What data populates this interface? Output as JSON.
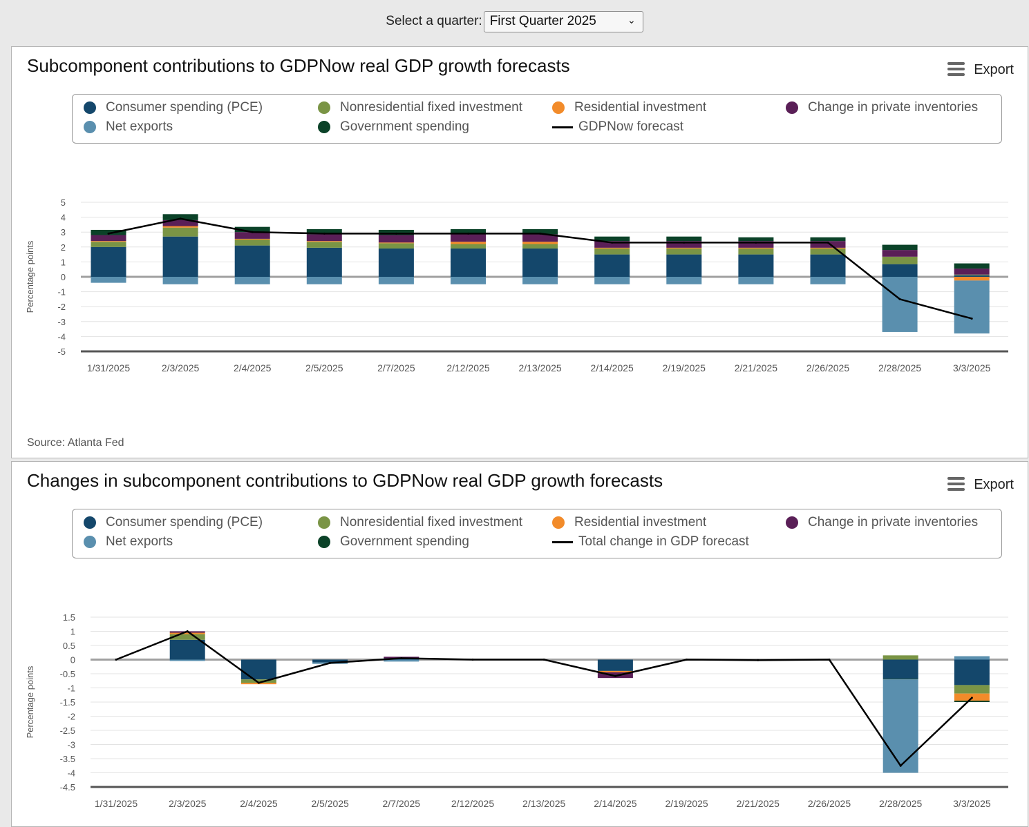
{
  "selector": {
    "label": "Select a quarter:",
    "value": "First Quarter 2025"
  },
  "export_label": "Export",
  "colors": {
    "pce": "#14476b",
    "nonres": "#7a9445",
    "res": "#f28b2a",
    "inv": "#5a1f57",
    "netx": "#5a8fae",
    "gov": "#0b4228",
    "line": "#000000"
  },
  "panels": [
    {
      "title": "Subcomponent contributions to GDPNow real GDP growth forecasts",
      "source": "Source: Atlanta Fed",
      "legend": [
        {
          "key": "pce",
          "label": "Consumer spending (PCE)"
        },
        {
          "key": "nonres",
          "label": "Nonresidential fixed investment"
        },
        {
          "key": "res",
          "label": "Residential investment"
        },
        {
          "key": "inv",
          "label": "Change in private inventories"
        },
        {
          "key": "netx",
          "label": "Net exports"
        },
        {
          "key": "gov",
          "label": "Government spending"
        },
        {
          "key": "line",
          "label": "GDPNow forecast",
          "line": true
        }
      ]
    },
    {
      "title": "Changes in subcomponent contributions to GDPNow real GDP growth forecasts",
      "legend": [
        {
          "key": "pce",
          "label": "Consumer spending (PCE)"
        },
        {
          "key": "nonres",
          "label": "Nonresidential fixed investment"
        },
        {
          "key": "res",
          "label": "Residential investment"
        },
        {
          "key": "inv",
          "label": "Change in private inventories"
        },
        {
          "key": "netx",
          "label": "Net exports"
        },
        {
          "key": "gov",
          "label": "Government spending"
        },
        {
          "key": "line",
          "label": "Total change in GDP forecast",
          "line": true
        }
      ]
    }
  ],
  "chart_data": [
    {
      "type": "bar",
      "stacked": true,
      "title": "Subcomponent contributions to GDPNow real GDP growth forecasts",
      "ylabel": "Percentage points",
      "ylim": [
        -5,
        5
      ],
      "yticks": [
        "5",
        "4",
        "3",
        "2",
        "1",
        "0",
        "-1",
        "-2",
        "-3",
        "-4",
        "-5"
      ],
      "ytick_values": [
        5,
        4,
        3,
        2,
        1,
        0,
        -1,
        -2,
        -3,
        -4,
        -5
      ],
      "categories": [
        "1/31/2025",
        "2/3/2025",
        "2/4/2025",
        "2/5/2025",
        "2/7/2025",
        "2/12/2025",
        "2/13/2025",
        "2/14/2025",
        "2/19/2025",
        "2/21/2025",
        "2/26/2025",
        "2/28/2025",
        "3/3/2025"
      ],
      "series": [
        {
          "key": "pce",
          "name": "Consumer spending (PCE)",
          "values": [
            2.0,
            2.7,
            2.1,
            1.95,
            1.9,
            1.9,
            1.9,
            1.5,
            1.5,
            1.5,
            1.5,
            0.85,
            0.1
          ]
        },
        {
          "key": "nonres",
          "name": "Nonresidential fixed investment",
          "values": [
            0.35,
            0.6,
            0.4,
            0.4,
            0.35,
            0.3,
            0.3,
            0.4,
            0.4,
            0.4,
            0.4,
            0.5,
            0.05
          ]
        },
        {
          "key": "res",
          "name": "Residential investment",
          "values": [
            0.05,
            0.1,
            0.05,
            0.05,
            0.05,
            0.15,
            0.15,
            0.05,
            0.05,
            0.05,
            0.05,
            0.0,
            -0.25
          ]
        },
        {
          "key": "inv",
          "name": "Change in private inventories",
          "values": [
            0.4,
            0.4,
            0.45,
            0.45,
            0.5,
            0.5,
            0.5,
            0.45,
            0.45,
            0.45,
            0.45,
            0.45,
            0.4
          ]
        },
        {
          "key": "gov",
          "name": "Government spending",
          "values": [
            0.35,
            0.4,
            0.35,
            0.35,
            0.35,
            0.35,
            0.35,
            0.3,
            0.3,
            0.25,
            0.25,
            0.35,
            0.35
          ]
        },
        {
          "key": "netx",
          "name": "Net exports",
          "values": [
            -0.4,
            -0.5,
            -0.5,
            -0.5,
            -0.5,
            -0.5,
            -0.5,
            -0.5,
            -0.5,
            -0.5,
            -0.5,
            -3.7,
            -3.55
          ]
        }
      ],
      "line": {
        "name": "GDPNow forecast",
        "values": [
          2.9,
          3.9,
          3.0,
          2.9,
          2.9,
          2.9,
          2.9,
          2.3,
          2.3,
          2.3,
          2.3,
          -1.5,
          -2.8
        ]
      }
    },
    {
      "type": "bar",
      "stacked": true,
      "title": "Changes in subcomponent contributions to GDPNow real GDP growth forecasts",
      "ylabel": "Percentage points",
      "ylim": [
        -4.5,
        1.5
      ],
      "yticks": [
        "1.5",
        "1",
        "0.5",
        "0",
        "-0.5",
        "-1",
        "-1.5",
        "-2",
        "-2.5",
        "-3",
        "-3.5",
        "-4",
        "-4.5"
      ],
      "ytick_values": [
        1.5,
        1,
        0.5,
        0,
        -0.5,
        -1,
        -1.5,
        -2,
        -2.5,
        -3,
        -3.5,
        -4,
        -4.5
      ],
      "categories": [
        "1/31/2025",
        "2/3/2025",
        "2/4/2025",
        "2/5/2025",
        "2/7/2025",
        "2/12/2025",
        "2/13/2025",
        "2/14/2025",
        "2/19/2025",
        "2/21/2025",
        "2/26/2025",
        "2/28/2025",
        "3/3/2025"
      ],
      "series": [
        {
          "key": "pce",
          "name": "Consumer spending (PCE)",
          "values": [
            0,
            0.7,
            -0.7,
            -0.1,
            0.05,
            0,
            0,
            -0.4,
            0,
            0,
            0,
            -0.68,
            -0.9
          ]
        },
        {
          "key": "nonres",
          "name": "Nonresidential fixed investment",
          "values": [
            0,
            0.2,
            -0.12,
            0,
            0,
            0,
            0,
            0,
            0,
            0,
            0,
            0.15,
            -0.3
          ]
        },
        {
          "key": "res",
          "name": "Residential investment",
          "values": [
            0,
            0.05,
            -0.05,
            0,
            0,
            0,
            0,
            -0.05,
            0,
            0,
            0,
            0,
            -0.25
          ]
        },
        {
          "key": "inv",
          "name": "Change in private inventories",
          "values": [
            0,
            0.05,
            0,
            0,
            0.05,
            0,
            0,
            -0.2,
            0,
            0,
            0,
            0,
            0
          ]
        },
        {
          "key": "gov",
          "name": "Government spending",
          "values": [
            0,
            0,
            0,
            0,
            0,
            0,
            0,
            0,
            0,
            0,
            0,
            -0.02,
            -0.05
          ]
        },
        {
          "key": "netx",
          "name": "Net exports",
          "values": [
            0,
            -0.05,
            0,
            -0.05,
            -0.07,
            0,
            0,
            0,
            0,
            0,
            0,
            -3.3,
            0.12
          ]
        }
      ],
      "line": {
        "name": "Total change in GDP forecast",
        "values": [
          0,
          1.0,
          -0.82,
          -0.12,
          0.05,
          0,
          0,
          -0.58,
          0,
          -0.02,
          0,
          -3.75,
          -1.35
        ]
      }
    }
  ]
}
